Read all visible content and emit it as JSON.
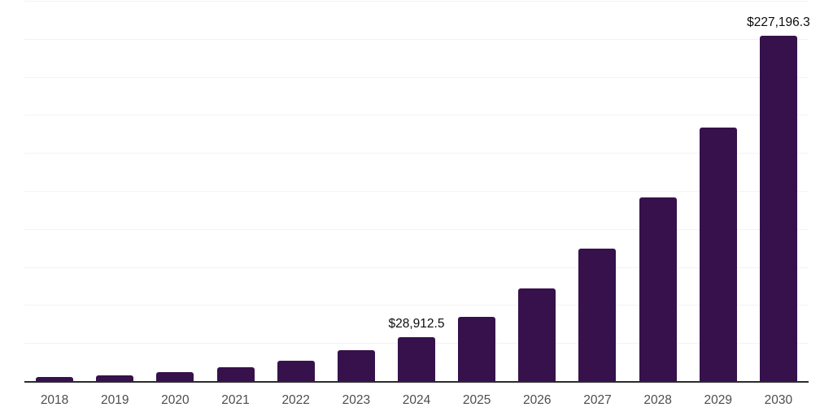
{
  "chart_data": {
    "type": "bar",
    "title": "",
    "xlabel": "",
    "ylabel": "",
    "categories": [
      "2018",
      "2019",
      "2020",
      "2021",
      "2022",
      "2023",
      "2024",
      "2025",
      "2026",
      "2027",
      "2028",
      "2029",
      "2030"
    ],
    "values": [
      2700,
      3900,
      5850,
      8900,
      13500,
      20400,
      28912.5,
      42300,
      61000,
      87300,
      121000,
      166500,
      227196.3
    ],
    "annotations": [
      {
        "category": "2024",
        "text": "$28,912.5"
      },
      {
        "category": "2030",
        "text": "$227,196.3"
      }
    ],
    "ylim": [
      0,
      250000
    ],
    "gridline_step": 25000,
    "grid": "horizontal",
    "legend": "none",
    "colors": {
      "bar": "#36114B",
      "axis_line": "#2b2b2b",
      "gridline": "#f3f3f3",
      "tick_label": "#4d4d4d",
      "data_label": "#0d0d0d",
      "background": "#ffffff"
    }
  }
}
